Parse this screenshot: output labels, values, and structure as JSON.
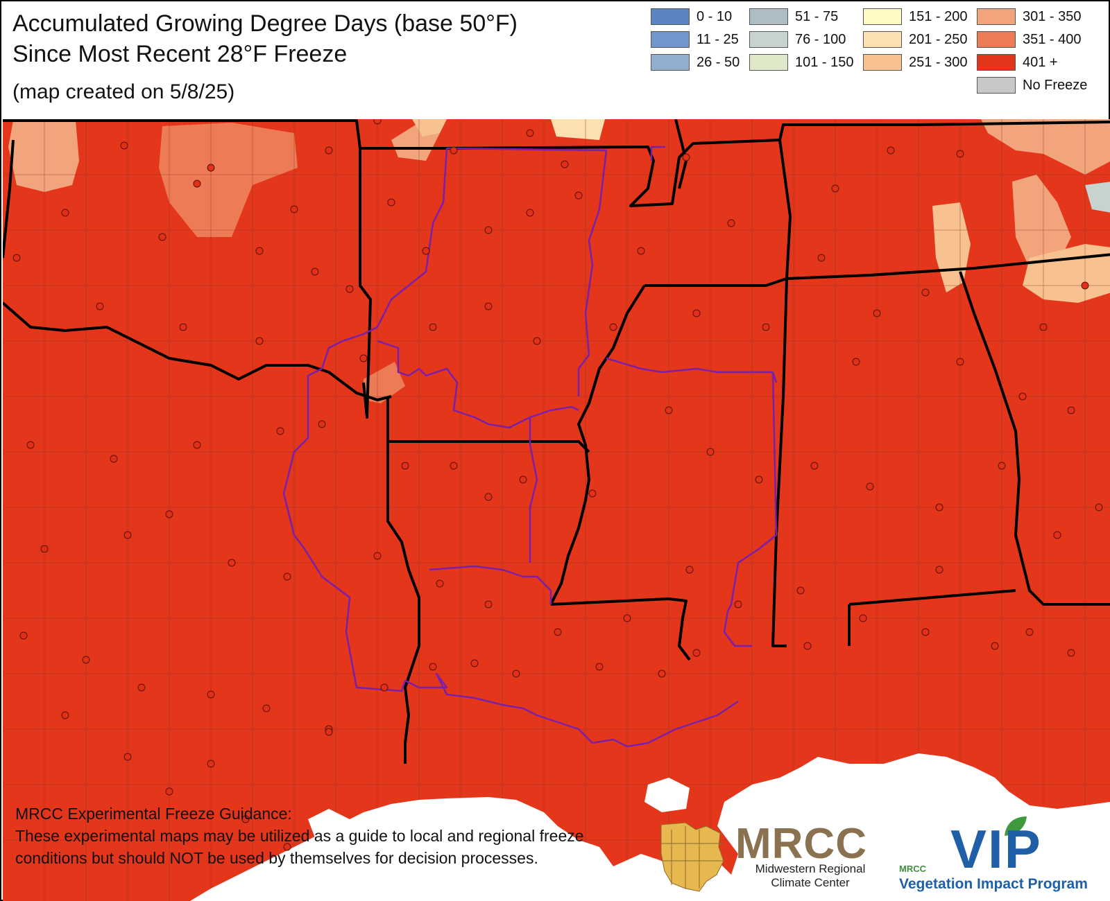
{
  "title": {
    "line1": "Accumulated Growing Degree Days (base 50°F)",
    "line2": "Since Most Recent 28°F Freeze",
    "subtitle": "(map created on 5/8/25)"
  },
  "legend": [
    {
      "label": "0 - 10",
      "color": "#5b84c4"
    },
    {
      "label": "11 - 25",
      "color": "#7196cb"
    },
    {
      "label": "26 - 50",
      "color": "#92aed1"
    },
    {
      "label": "51 - 75",
      "color": "#aebcc6"
    },
    {
      "label": "76 - 100",
      "color": "#c7d3cf"
    },
    {
      "label": "101 - 150",
      "color": "#dfe8c8"
    },
    {
      "label": "151 - 200",
      "color": "#fffac4"
    },
    {
      "label": "201 - 250",
      "color": "#fce0b2"
    },
    {
      "label": "251 - 300",
      "color": "#f7c190"
    },
    {
      "label": "301 - 350",
      "color": "#f2a57c"
    },
    {
      "label": "351 - 400",
      "color": "#ec7b56"
    },
    {
      "label": "401 +",
      "color": "#e4361b"
    },
    {
      "label": "No Freeze",
      "color": "#c8c8c8"
    }
  ],
  "map": {
    "dominant_class": "401 +",
    "colors": {
      "gdd_401_plus": "#e4361b",
      "gdd_351_400": "#ec7b56",
      "gdd_301_350": "#f2a57c",
      "gdd_251_300": "#f7c190",
      "gdd_201_250": "#fce0b2",
      "gdd_76_100": "#c7d3cf",
      "water": "#ffffff",
      "state_border": "#000000",
      "county_border": "#707070",
      "forecast_area_border": "#7a1fa8",
      "station_dot": "#e0301a"
    }
  },
  "disclaimer": {
    "heading": "MRCC Experimental Freeze Guidance:",
    "body": "These experimental maps may be utilized as a guide to local and regional freeze conditions but should NOT be used by themselves for decision processes."
  },
  "logos": {
    "mrcc": {
      "name": "MRCC",
      "line1": "Midwestern Regional",
      "line2": "Climate Center",
      "color": "#8a7150"
    },
    "vip": {
      "name": "VIP",
      "small": "MRCC",
      "subtitle": "Vegetation Impact Program",
      "color": "#1f5fa8"
    }
  }
}
